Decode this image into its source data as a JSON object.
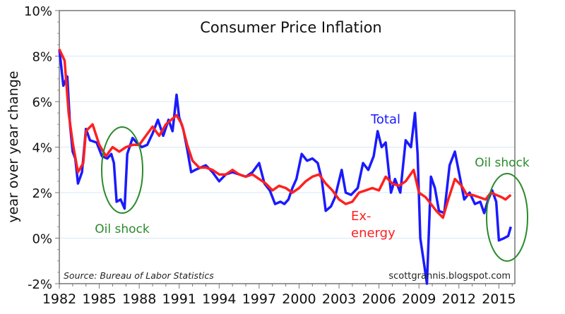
{
  "chart_data": {
    "type": "line",
    "title": "Consumer Price Inflation",
    "ylabel": "year over year change",
    "xlabel": "",
    "xlim": [
      1982,
      2016.2
    ],
    "ylim": [
      -2,
      10
    ],
    "x_ticks": [
      "1982",
      "1985",
      "1988",
      "1991",
      "1994",
      "1997",
      "2000",
      "2003",
      "2006",
      "2009",
      "2012",
      "2015"
    ],
    "y_ticks": [
      "-2%",
      "0%",
      "2%",
      "4%",
      "6%",
      "8%",
      "10%"
    ],
    "grid": true,
    "source": "Source: Bureau of Labor Statistics",
    "watermark": "scottgrannis.blogspot.com",
    "annotations": {
      "total": "Total",
      "ex_energy_1": "Ex-",
      "ex_energy_2": "energy",
      "oil_shock_1": "Oil shock",
      "oil_shock_2": "Oil shock"
    },
    "colors": {
      "total": "#1a1aff",
      "ex_energy": "#ff2020",
      "annotation": "#2a8a2a",
      "grid": "#d6e8f5"
    },
    "series": [
      {
        "name": "Total",
        "points": [
          [
            1982.0,
            8.3
          ],
          [
            1982.3,
            6.7
          ],
          [
            1982.6,
            7.1
          ],
          [
            1982.8,
            5.0
          ],
          [
            1983.0,
            3.8
          ],
          [
            1983.2,
            3.5
          ],
          [
            1983.4,
            2.4
          ],
          [
            1983.7,
            2.9
          ],
          [
            1984.0,
            4.8
          ],
          [
            1984.3,
            4.3
          ],
          [
            1984.8,
            4.2
          ],
          [
            1985.2,
            3.6
          ],
          [
            1985.6,
            3.5
          ],
          [
            1985.9,
            3.7
          ],
          [
            1986.1,
            3.3
          ],
          [
            1986.3,
            1.6
          ],
          [
            1986.6,
            1.7
          ],
          [
            1986.9,
            1.3
          ],
          [
            1987.1,
            3.7
          ],
          [
            1987.5,
            4.4
          ],
          [
            1987.8,
            4.2
          ],
          [
            1988.2,
            4.0
          ],
          [
            1988.6,
            4.1
          ],
          [
            1989.0,
            4.6
          ],
          [
            1989.4,
            5.2
          ],
          [
            1989.8,
            4.5
          ],
          [
            1990.2,
            5.2
          ],
          [
            1990.5,
            4.7
          ],
          [
            1990.8,
            6.3
          ],
          [
            1991.0,
            5.3
          ],
          [
            1991.3,
            4.8
          ],
          [
            1991.6,
            3.9
          ],
          [
            1991.9,
            2.9
          ],
          [
            1992.2,
            3.0
          ],
          [
            1992.6,
            3.1
          ],
          [
            1993.0,
            3.2
          ],
          [
            1993.5,
            2.9
          ],
          [
            1994.0,
            2.5
          ],
          [
            1994.5,
            2.8
          ],
          [
            1995.0,
            2.9
          ],
          [
            1995.5,
            2.8
          ],
          [
            1996.0,
            2.7
          ],
          [
            1996.5,
            2.9
          ],
          [
            1997.0,
            3.3
          ],
          [
            1997.4,
            2.4
          ],
          [
            1997.8,
            2.1
          ],
          [
            1998.2,
            1.5
          ],
          [
            1998.6,
            1.6
          ],
          [
            1998.9,
            1.5
          ],
          [
            1999.2,
            1.7
          ],
          [
            1999.5,
            2.2
          ],
          [
            1999.8,
            2.6
          ],
          [
            2000.2,
            3.7
          ],
          [
            2000.6,
            3.4
          ],
          [
            2001.0,
            3.5
          ],
          [
            2001.4,
            3.3
          ],
          [
            2001.7,
            2.6
          ],
          [
            2002.0,
            1.2
          ],
          [
            2002.4,
            1.4
          ],
          [
            2002.7,
            1.8
          ],
          [
            2003.2,
            3.0
          ],
          [
            2003.5,
            2.0
          ],
          [
            2003.9,
            1.9
          ],
          [
            2004.4,
            2.2
          ],
          [
            2004.8,
            3.3
          ],
          [
            2005.2,
            3.0
          ],
          [
            2005.6,
            3.6
          ],
          [
            2005.9,
            4.7
          ],
          [
            2006.2,
            4.0
          ],
          [
            2006.5,
            4.2
          ],
          [
            2006.9,
            2.0
          ],
          [
            2007.2,
            2.6
          ],
          [
            2007.6,
            2.0
          ],
          [
            2008.0,
            4.3
          ],
          [
            2008.4,
            4.0
          ],
          [
            2008.7,
            5.5
          ],
          [
            2008.9,
            3.7
          ],
          [
            2009.1,
            0.0
          ],
          [
            2009.4,
            -1.2
          ],
          [
            2009.6,
            -2.0
          ],
          [
            2009.9,
            2.7
          ],
          [
            2010.2,
            2.2
          ],
          [
            2010.5,
            1.2
          ],
          [
            2010.9,
            1.1
          ],
          [
            2011.3,
            3.2
          ],
          [
            2011.7,
            3.8
          ],
          [
            2012.0,
            2.9
          ],
          [
            2012.4,
            1.7
          ],
          [
            2012.8,
            2.0
          ],
          [
            2013.2,
            1.5
          ],
          [
            2013.6,
            1.6
          ],
          [
            2013.9,
            1.1
          ],
          [
            2014.2,
            1.7
          ],
          [
            2014.5,
            2.1
          ],
          [
            2014.8,
            1.6
          ],
          [
            2015.0,
            -0.1
          ],
          [
            2015.4,
            0.0
          ],
          [
            2015.7,
            0.1
          ],
          [
            2015.9,
            0.5
          ]
        ]
      },
      {
        "name": "Ex-energy",
        "points": [
          [
            1982.0,
            8.3
          ],
          [
            1982.4,
            7.8
          ],
          [
            1982.7,
            5.5
          ],
          [
            1983.0,
            4.2
          ],
          [
            1983.4,
            2.9
          ],
          [
            1983.8,
            3.3
          ],
          [
            1984.0,
            4.7
          ],
          [
            1984.5,
            5.0
          ],
          [
            1985.0,
            4.1
          ],
          [
            1985.5,
            3.6
          ],
          [
            1986.0,
            4.0
          ],
          [
            1986.5,
            3.8
          ],
          [
            1987.0,
            4.0
          ],
          [
            1987.5,
            4.1
          ],
          [
            1988.0,
            4.1
          ],
          [
            1988.5,
            4.5
          ],
          [
            1989.0,
            4.9
          ],
          [
            1989.5,
            4.5
          ],
          [
            1990.0,
            5.0
          ],
          [
            1990.8,
            5.4
          ],
          [
            1991.2,
            5.0
          ],
          [
            1991.6,
            4.1
          ],
          [
            1992.0,
            3.4
          ],
          [
            1992.5,
            3.1
          ],
          [
            1993.0,
            3.1
          ],
          [
            1993.5,
            3.0
          ],
          [
            1994.0,
            2.8
          ],
          [
            1994.5,
            2.8
          ],
          [
            1995.0,
            3.0
          ],
          [
            1995.5,
            2.8
          ],
          [
            1996.0,
            2.7
          ],
          [
            1996.5,
            2.8
          ],
          [
            1997.0,
            2.6
          ],
          [
            1997.5,
            2.4
          ],
          [
            1998.0,
            2.1
          ],
          [
            1998.5,
            2.3
          ],
          [
            1999.0,
            2.2
          ],
          [
            1999.5,
            2.0
          ],
          [
            2000.0,
            2.2
          ],
          [
            2000.5,
            2.5
          ],
          [
            2001.0,
            2.7
          ],
          [
            2001.5,
            2.8
          ],
          [
            2002.0,
            2.4
          ],
          [
            2002.5,
            2.1
          ],
          [
            2003.0,
            1.7
          ],
          [
            2003.5,
            1.5
          ],
          [
            2004.0,
            1.6
          ],
          [
            2004.5,
            2.0
          ],
          [
            2005.0,
            2.1
          ],
          [
            2005.5,
            2.2
          ],
          [
            2006.0,
            2.1
          ],
          [
            2006.5,
            2.7
          ],
          [
            2007.0,
            2.4
          ],
          [
            2007.5,
            2.3
          ],
          [
            2008.0,
            2.5
          ],
          [
            2008.6,
            3.0
          ],
          [
            2009.0,
            2.0
          ],
          [
            2009.5,
            1.8
          ],
          [
            2009.9,
            1.5
          ],
          [
            2010.3,
            1.2
          ],
          [
            2010.8,
            0.9
          ],
          [
            2011.2,
            1.7
          ],
          [
            2011.7,
            2.6
          ],
          [
            2012.2,
            2.3
          ],
          [
            2012.6,
            1.9
          ],
          [
            2013.0,
            1.9
          ],
          [
            2013.5,
            1.8
          ],
          [
            2014.0,
            1.7
          ],
          [
            2014.4,
            2.0
          ],
          [
            2014.8,
            1.9
          ],
          [
            2015.2,
            1.8
          ],
          [
            2015.5,
            1.7
          ],
          [
            2015.9,
            1.9
          ]
        ]
      }
    ]
  }
}
